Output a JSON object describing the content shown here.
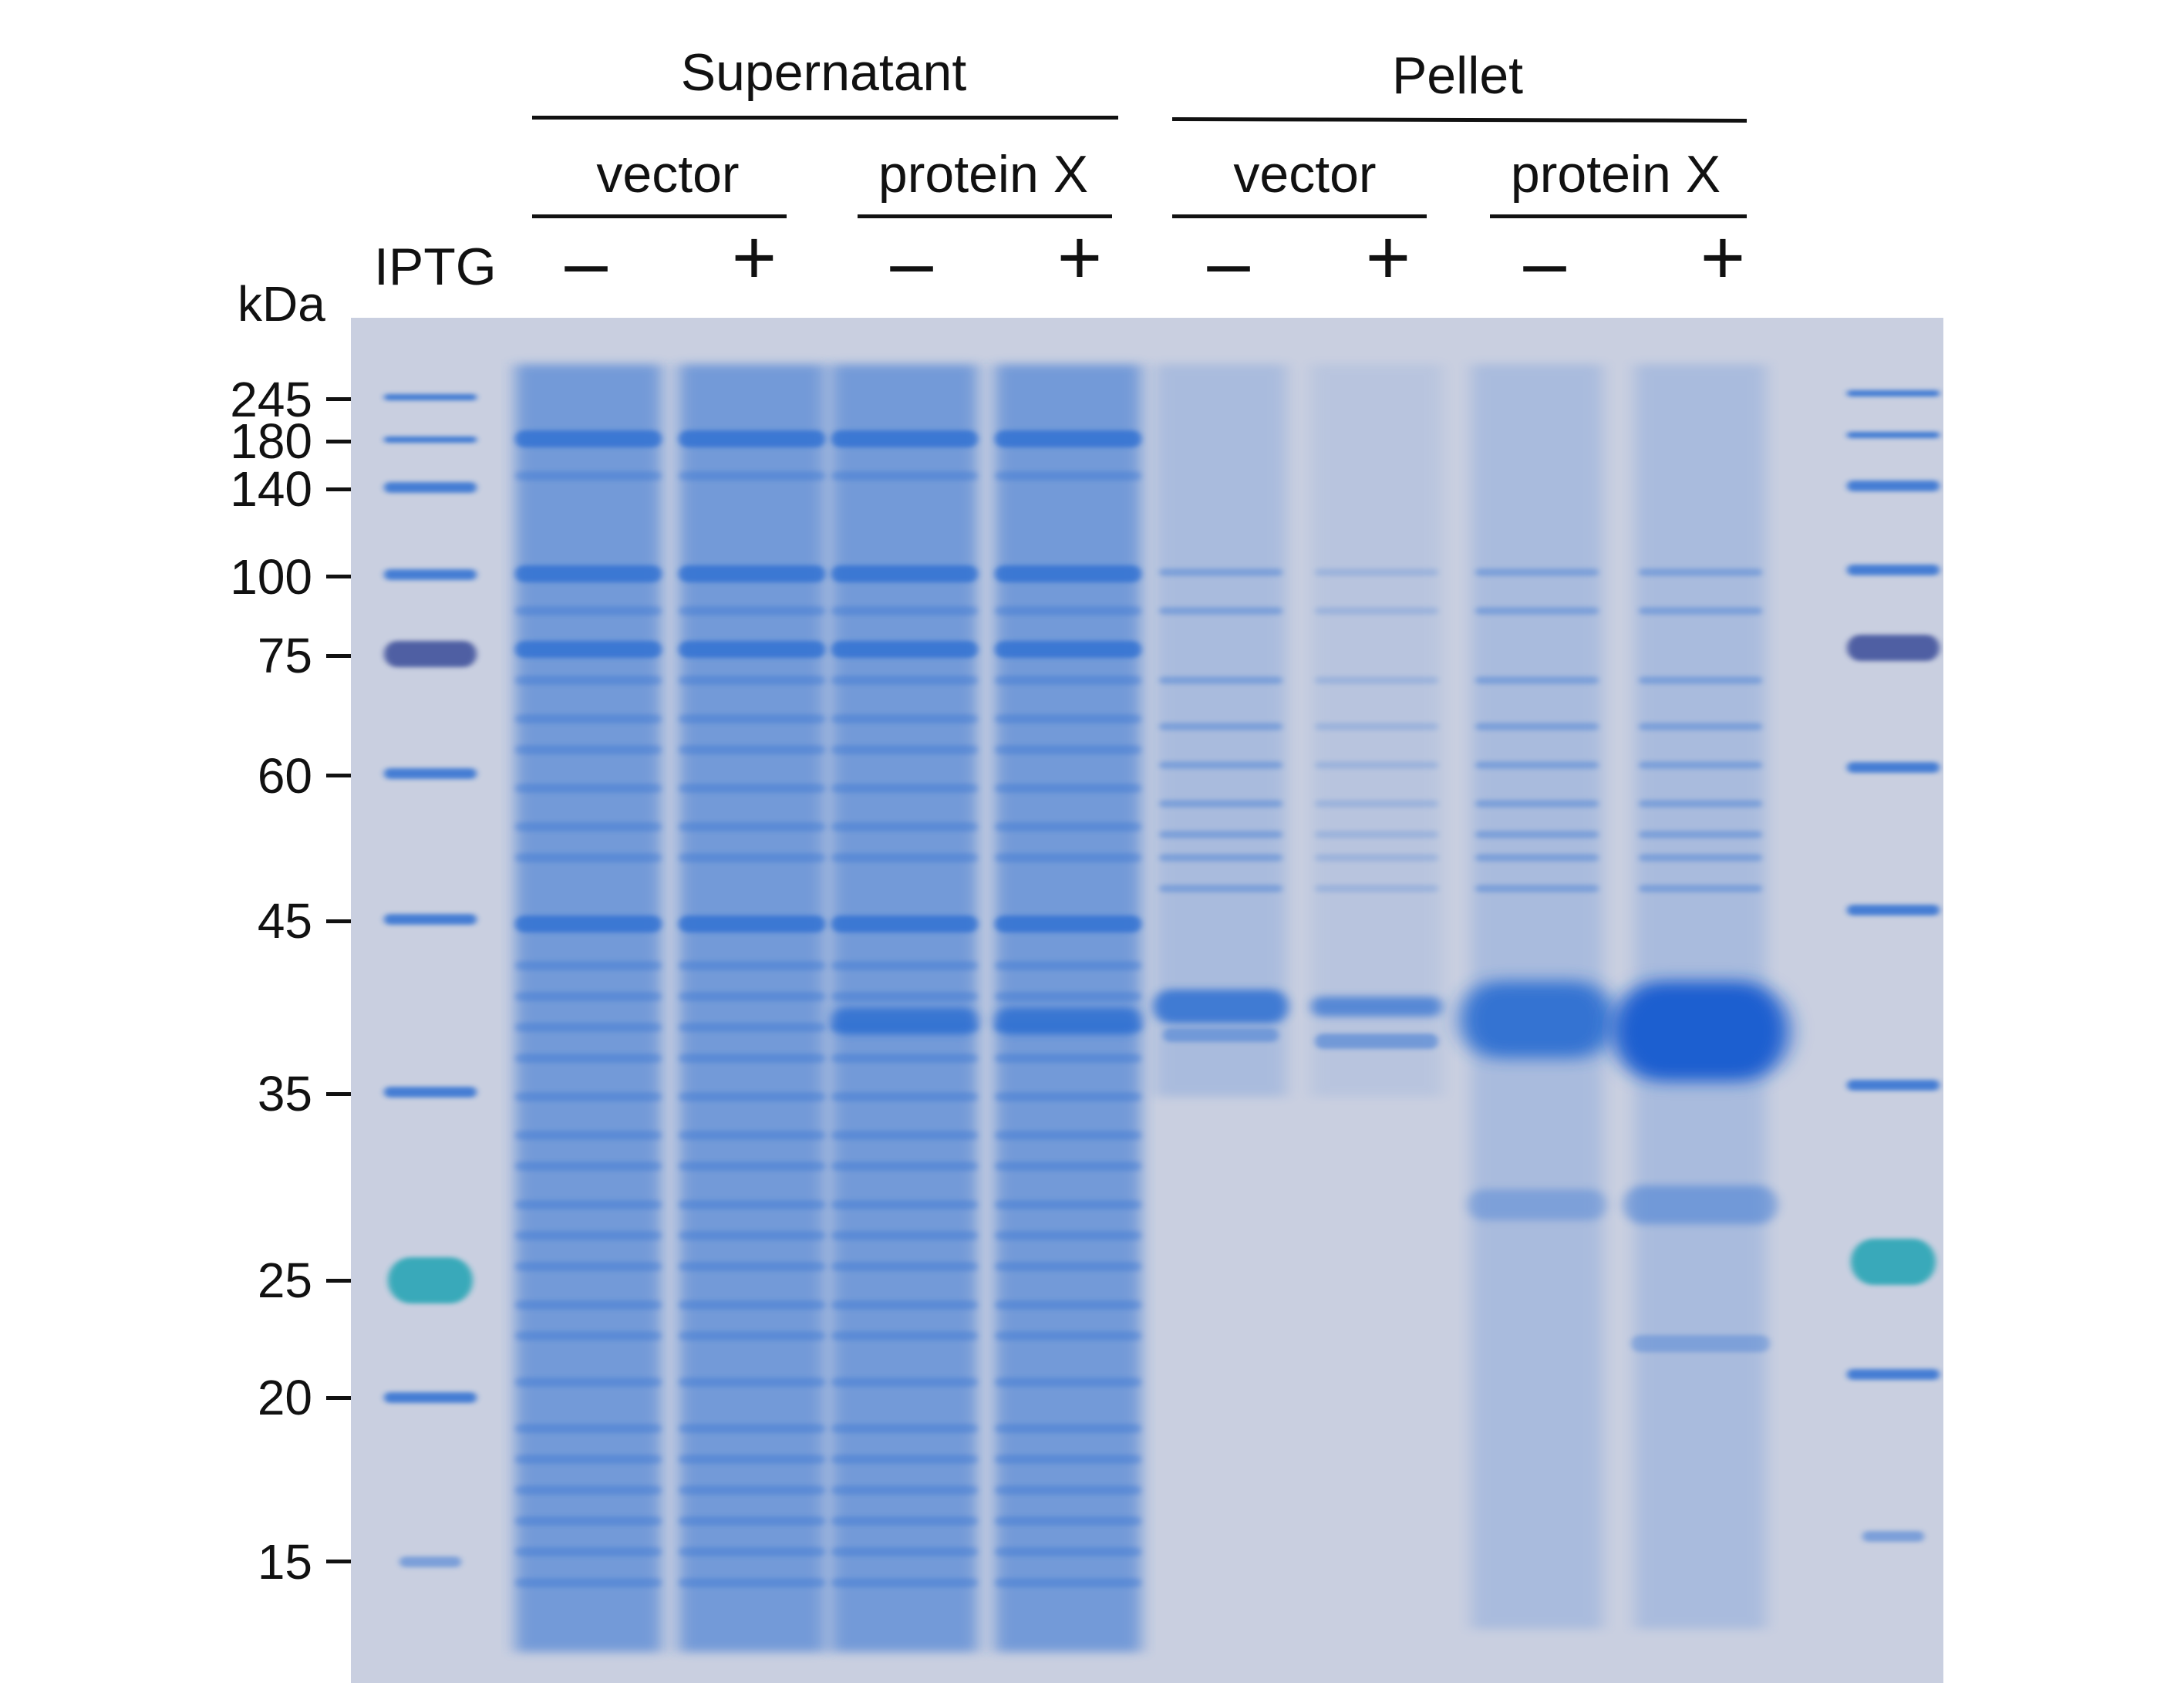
{
  "figure": {
    "group_labels": [
      "Supernatant",
      "Pellet"
    ],
    "subgroup_labels": [
      "vector",
      "protein X",
      "vector",
      "protein X"
    ],
    "iptg_label": "IPTG",
    "iptg_signs": [
      "–",
      "+",
      "–",
      "+",
      "–",
      "+",
      "–",
      "+"
    ],
    "unit_label": "kDa",
    "markers": [
      "245",
      "180",
      "140",
      "100",
      "75",
      "60",
      "45",
      "35",
      "25",
      "20",
      "15"
    ]
  },
  "gel": {
    "background_color": "#c9cfe0",
    "band_color": "#2f6fd2",
    "marker_75_color": "#4a5aa0",
    "marker_25_color": "#30a8b8"
  }
}
